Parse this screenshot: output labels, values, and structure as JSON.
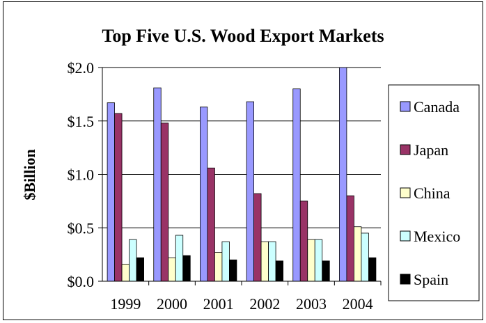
{
  "chart_data": {
    "type": "bar",
    "title": "Top Five U.S. Wood Export Markets",
    "ylabel": "$Billion",
    "xlabel": "",
    "categories": [
      "1999",
      "2000",
      "2001",
      "2002",
      "2003",
      "2004"
    ],
    "y_ticks": [
      "$0.0",
      "$0.5",
      "$1.0",
      "$1.5",
      "$2.0"
    ],
    "ylim": [
      0,
      2.0
    ],
    "grid": true,
    "legend_position": "right",
    "series": [
      {
        "name": "Canada",
        "color": "#9999ff",
        "values": [
          1.67,
          1.81,
          1.63,
          1.68,
          1.8,
          2.0
        ]
      },
      {
        "name": "Japan",
        "color": "#993366",
        "values": [
          1.57,
          1.48,
          1.06,
          0.82,
          0.75,
          0.8
        ]
      },
      {
        "name": "China",
        "color": "#ffffcc",
        "values": [
          0.16,
          0.22,
          0.27,
          0.37,
          0.39,
          0.51
        ]
      },
      {
        "name": "Mexico",
        "color": "#ccffff",
        "values": [
          0.39,
          0.43,
          0.37,
          0.37,
          0.39,
          0.45
        ]
      },
      {
        "name": "Spain",
        "color": "#000000",
        "values": [
          0.22,
          0.24,
          0.2,
          0.19,
          0.19,
          0.22
        ]
      }
    ]
  }
}
